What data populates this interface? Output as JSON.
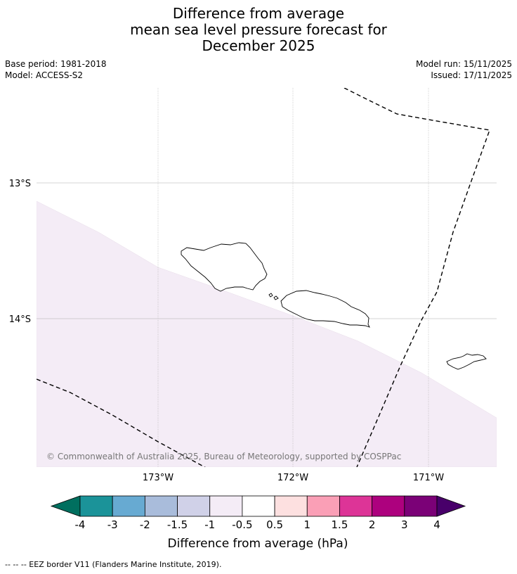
{
  "title": {
    "line1": "Difference from average",
    "line2": "mean sea level pressure forecast for",
    "line3": "December 2025"
  },
  "meta": {
    "base_period": "Base period: 1981-2018",
    "model": "Model: ACCESS-S2",
    "model_run": "Model run: 15/11/2025",
    "issued": "Issued: 17/11/2025"
  },
  "map": {
    "lat_labels": [
      "13°S",
      "14°S"
    ],
    "lon_labels": [
      "173°W",
      "172°W",
      "171°W"
    ],
    "copyright": "© Commonwealth of Australia 2025, Bureau of Meteorology, supported by COSPPac",
    "shaded_region_category": "-1 to -0.5",
    "colors": {
      "shading": "#f4ecf6",
      "grid": "#aaaaaa",
      "coast": "#000000"
    }
  },
  "colorbar": {
    "tick_labels": [
      "-4",
      "-3",
      "-2",
      "-1.5",
      "-1",
      "-0.5",
      "0.5",
      "1",
      "1.5",
      "2",
      "3",
      "4"
    ],
    "colors": [
      "#006f5f",
      "#1b9399",
      "#67aad2",
      "#a9bcdb",
      "#d0d1e8",
      "#f4ecf6",
      "#ffffff",
      "#fde0e0",
      "#fa9fb6",
      "#dd3497",
      "#ad017e",
      "#7b0177",
      "#48006a"
    ],
    "label": "Difference from average (hPa)"
  },
  "footer": {
    "legend_text": "--  --  -- EEZ border V11 (Flanders Marine Institute, 2019)."
  }
}
